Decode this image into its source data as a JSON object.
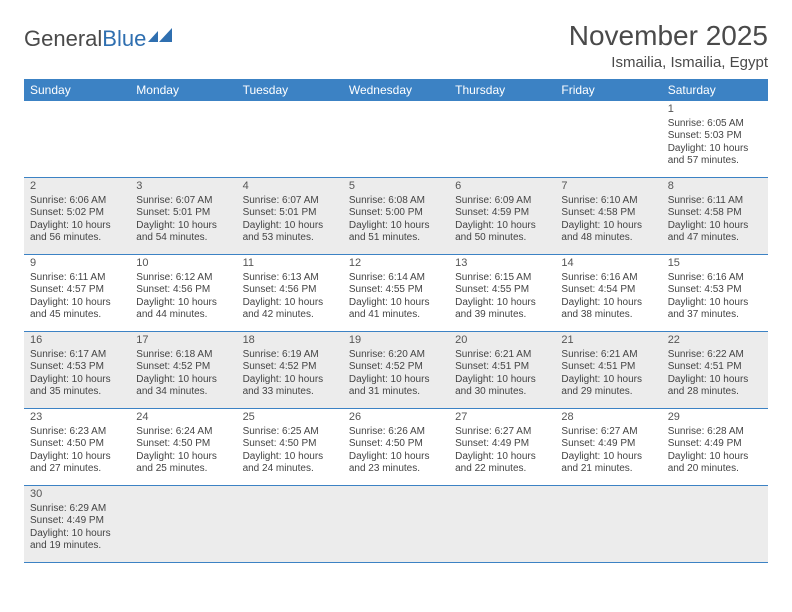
{
  "brand": {
    "a": "General",
    "b": "Blue"
  },
  "title": "November 2025",
  "location": "Ismailia, Ismailia, Egypt",
  "dow": [
    "Sunday",
    "Monday",
    "Tuesday",
    "Wednesday",
    "Thursday",
    "Friday",
    "Saturday"
  ],
  "colors": {
    "header_bg": "#3c82c4",
    "header_fg": "#ffffff",
    "shade": "#ececec",
    "rule": "#3c82c4",
    "brand_b": "#2f6fb0",
    "text": "#4a4a4a"
  },
  "weeks": [
    [
      null,
      null,
      null,
      null,
      null,
      null,
      {
        "n": "1",
        "sr": "6:05 AM",
        "ss": "5:03 PM",
        "dl": "10 hours and 57 minutes."
      }
    ],
    [
      {
        "n": "2",
        "sr": "6:06 AM",
        "ss": "5:02 PM",
        "dl": "10 hours and 56 minutes."
      },
      {
        "n": "3",
        "sr": "6:07 AM",
        "ss": "5:01 PM",
        "dl": "10 hours and 54 minutes."
      },
      {
        "n": "4",
        "sr": "6:07 AM",
        "ss": "5:01 PM",
        "dl": "10 hours and 53 minutes."
      },
      {
        "n": "5",
        "sr": "6:08 AM",
        "ss": "5:00 PM",
        "dl": "10 hours and 51 minutes."
      },
      {
        "n": "6",
        "sr": "6:09 AM",
        "ss": "4:59 PM",
        "dl": "10 hours and 50 minutes."
      },
      {
        "n": "7",
        "sr": "6:10 AM",
        "ss": "4:58 PM",
        "dl": "10 hours and 48 minutes."
      },
      {
        "n": "8",
        "sr": "6:11 AM",
        "ss": "4:58 PM",
        "dl": "10 hours and 47 minutes."
      }
    ],
    [
      {
        "n": "9",
        "sr": "6:11 AM",
        "ss": "4:57 PM",
        "dl": "10 hours and 45 minutes."
      },
      {
        "n": "10",
        "sr": "6:12 AM",
        "ss": "4:56 PM",
        "dl": "10 hours and 44 minutes."
      },
      {
        "n": "11",
        "sr": "6:13 AM",
        "ss": "4:56 PM",
        "dl": "10 hours and 42 minutes."
      },
      {
        "n": "12",
        "sr": "6:14 AM",
        "ss": "4:55 PM",
        "dl": "10 hours and 41 minutes."
      },
      {
        "n": "13",
        "sr": "6:15 AM",
        "ss": "4:55 PM",
        "dl": "10 hours and 39 minutes."
      },
      {
        "n": "14",
        "sr": "6:16 AM",
        "ss": "4:54 PM",
        "dl": "10 hours and 38 minutes."
      },
      {
        "n": "15",
        "sr": "6:16 AM",
        "ss": "4:53 PM",
        "dl": "10 hours and 37 minutes."
      }
    ],
    [
      {
        "n": "16",
        "sr": "6:17 AM",
        "ss": "4:53 PM",
        "dl": "10 hours and 35 minutes."
      },
      {
        "n": "17",
        "sr": "6:18 AM",
        "ss": "4:52 PM",
        "dl": "10 hours and 34 minutes."
      },
      {
        "n": "18",
        "sr": "6:19 AM",
        "ss": "4:52 PM",
        "dl": "10 hours and 33 minutes."
      },
      {
        "n": "19",
        "sr": "6:20 AM",
        "ss": "4:52 PM",
        "dl": "10 hours and 31 minutes."
      },
      {
        "n": "20",
        "sr": "6:21 AM",
        "ss": "4:51 PM",
        "dl": "10 hours and 30 minutes."
      },
      {
        "n": "21",
        "sr": "6:21 AM",
        "ss": "4:51 PM",
        "dl": "10 hours and 29 minutes."
      },
      {
        "n": "22",
        "sr": "6:22 AM",
        "ss": "4:51 PM",
        "dl": "10 hours and 28 minutes."
      }
    ],
    [
      {
        "n": "23",
        "sr": "6:23 AM",
        "ss": "4:50 PM",
        "dl": "10 hours and 27 minutes."
      },
      {
        "n": "24",
        "sr": "6:24 AM",
        "ss": "4:50 PM",
        "dl": "10 hours and 25 minutes."
      },
      {
        "n": "25",
        "sr": "6:25 AM",
        "ss": "4:50 PM",
        "dl": "10 hours and 24 minutes."
      },
      {
        "n": "26",
        "sr": "6:26 AM",
        "ss": "4:50 PM",
        "dl": "10 hours and 23 minutes."
      },
      {
        "n": "27",
        "sr": "6:27 AM",
        "ss": "4:49 PM",
        "dl": "10 hours and 22 minutes."
      },
      {
        "n": "28",
        "sr": "6:27 AM",
        "ss": "4:49 PM",
        "dl": "10 hours and 21 minutes."
      },
      {
        "n": "29",
        "sr": "6:28 AM",
        "ss": "4:49 PM",
        "dl": "10 hours and 20 minutes."
      }
    ],
    [
      {
        "n": "30",
        "sr": "6:29 AM",
        "ss": "4:49 PM",
        "dl": "10 hours and 19 minutes."
      },
      null,
      null,
      null,
      null,
      null,
      null
    ]
  ],
  "labels": {
    "sunrise": "Sunrise:",
    "sunset": "Sunset:",
    "daylight": "Daylight:"
  }
}
